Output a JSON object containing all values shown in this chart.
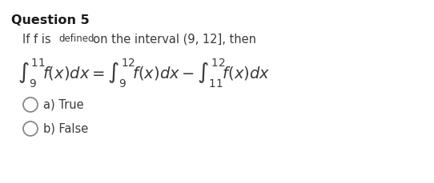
{
  "title": "Question 5",
  "line1_part1": "If f is ",
  "line1_defined": "defined",
  "line1_part2": "  on the interval (9, 12], then",
  "integral_tex": "$\\int_{9}^{11}\\! f(x)dx = \\int_{9}^{12}\\! f(x)dx - \\int_{11}^{12}\\! f(x)dx$",
  "option_a": "a) True",
  "option_b": "b) False",
  "bg_color": "#ffffff",
  "text_color": "#3a3a3a",
  "title_color": "#1a1a1a",
  "title_fontsize": 11.5,
  "body_fontsize": 10.5,
  "integral_fontsize": 14,
  "option_fontsize": 10.5,
  "circle_color": "#888888"
}
